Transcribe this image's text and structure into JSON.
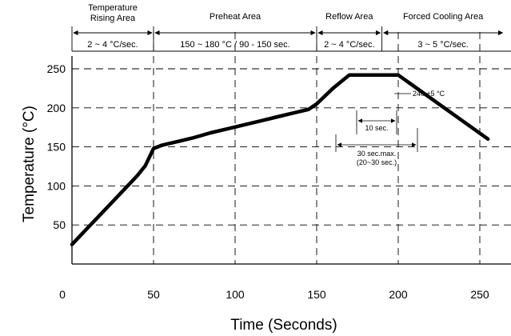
{
  "chart_data": {
    "type": "line",
    "title": "",
    "xlabel": "Time (Seconds)",
    "ylabel": "Temperature (°C)",
    "xlim": [
      0,
      265
    ],
    "ylim": [
      0,
      265
    ],
    "xticks": [
      0,
      50,
      100,
      150,
      200,
      250
    ],
    "yticks": [
      50,
      100,
      150,
      200,
      250
    ],
    "grid": "dashed",
    "series": [
      {
        "name": "",
        "x": [
          0,
          10,
          20,
          30,
          40,
          45,
          50,
          55,
          65,
          75,
          85,
          95,
          105,
          115,
          125,
          135,
          145,
          150,
          160,
          170,
          175,
          200,
          255
        ],
        "y": [
          25,
          47,
          69,
          91,
          113,
          126,
          148,
          152,
          157,
          162,
          168,
          173,
          178,
          183,
          188,
          193,
          198,
          205,
          225,
          242,
          242,
          242,
          160
        ]
      }
    ],
    "zones": [
      {
        "name": "Temperature\nRising Area",
        "rate": "2 ~ 4 °C/sec.",
        "x_start": 0,
        "x_end": 50
      },
      {
        "name": "Preheat Area",
        "rate": "150 ~ 180 °C / 90 - 150 sec.",
        "x_start": 50,
        "x_end": 150
      },
      {
        "name": "Reflow Area",
        "rate": "2 ~ 4 °C/sec.",
        "x_start": 150,
        "x_end": 190
      },
      {
        "name": "Forced Cooling Area",
        "rate": "3 ~ 5 °C/sec.",
        "x_start": 190,
        "x_end": 265
      }
    ],
    "annotations": {
      "peak": "240 ±5 °C",
      "dwell_short": "10 sec.",
      "dwell_long_line1": "30 sec.max.",
      "dwell_long_line2": "(20~30 sec.)"
    }
  }
}
